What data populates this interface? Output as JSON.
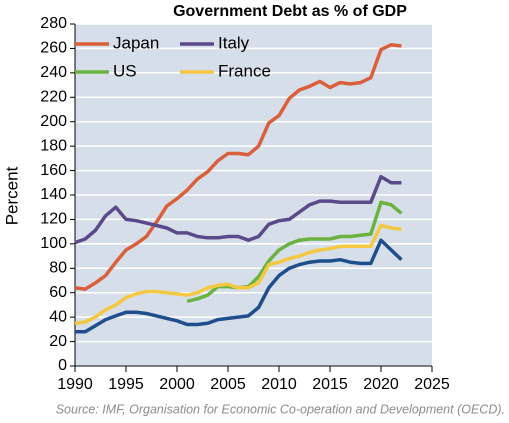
{
  "chart_data": {
    "type": "line",
    "title": "Government Debt as % of GDP",
    "y_label": "Percent",
    "source": "Source: IMF, Organisation for Economic Co-operation and Development (OECD).",
    "x": [
      1990,
      1991,
      1992,
      1993,
      1994,
      1995,
      1996,
      1997,
      1998,
      1999,
      2000,
      2001,
      2002,
      2003,
      2004,
      2005,
      2006,
      2007,
      2008,
      2009,
      2010,
      2011,
      2012,
      2013,
      2014,
      2015,
      2016,
      2017,
      2018,
      2019,
      2020,
      2021,
      2022
    ],
    "xlim": [
      1990,
      2025
    ],
    "xticks": [
      1990,
      1995,
      2000,
      2005,
      2010,
      2015,
      2020,
      2025
    ],
    "ylim": [
      0,
      280
    ],
    "yticks": [
      0,
      20,
      40,
      60,
      80,
      100,
      120,
      140,
      160,
      180,
      200,
      220,
      240,
      260,
      280
    ],
    "grid": true,
    "legend": "top-left",
    "series": [
      {
        "name": "Japan",
        "color": "#d9603b",
        "values": [
          64,
          63,
          68,
          74,
          85,
          95,
          100,
          106,
          118,
          131,
          137,
          144,
          153,
          159,
          168,
          174,
          174,
          173,
          180,
          199,
          205,
          219,
          226,
          229,
          233,
          228,
          232,
          231,
          232,
          236,
          259,
          263,
          262
        ]
      },
      {
        "name": "Italy",
        "color": "#5b4a8b",
        "values": [
          101,
          104,
          111,
          123,
          130,
          120,
          119,
          117,
          115,
          113,
          109,
          109,
          106,
          105,
          105,
          106,
          106,
          103,
          106,
          116,
          119,
          120,
          126,
          132,
          135,
          135,
          134,
          134,
          134,
          134,
          155,
          150,
          150
        ]
      },
      {
        "name": "US",
        "color": "#6bb23f",
        "values": [
          null,
          null,
          null,
          null,
          null,
          null,
          null,
          null,
          null,
          null,
          null,
          53,
          55,
          58,
          65,
          65,
          64,
          65,
          73,
          86,
          95,
          100,
          103,
          104,
          104,
          104,
          106,
          106,
          107,
          108,
          134,
          132,
          125
        ]
      },
      {
        "name": "France",
        "color": "#f5c842",
        "values": [
          35,
          36,
          40,
          46,
          50,
          56,
          59,
          61,
          61,
          60,
          59,
          58,
          60,
          64,
          66,
          67,
          64,
          64,
          68,
          83,
          85,
          88,
          90,
          93,
          95,
          96,
          98,
          98,
          98,
          98,
          115,
          113,
          112
        ]
      },
      {
        "color": "#1f4e8c",
        "values": [
          28,
          28,
          33,
          38,
          41,
          44,
          44,
          43,
          41,
          39,
          37,
          34,
          34,
          35,
          38,
          39,
          40,
          41,
          48,
          64,
          74,
          80,
          83,
          85,
          86,
          86,
          87,
          85,
          84,
          84,
          103,
          95,
          87
        ]
      }
    ]
  }
}
